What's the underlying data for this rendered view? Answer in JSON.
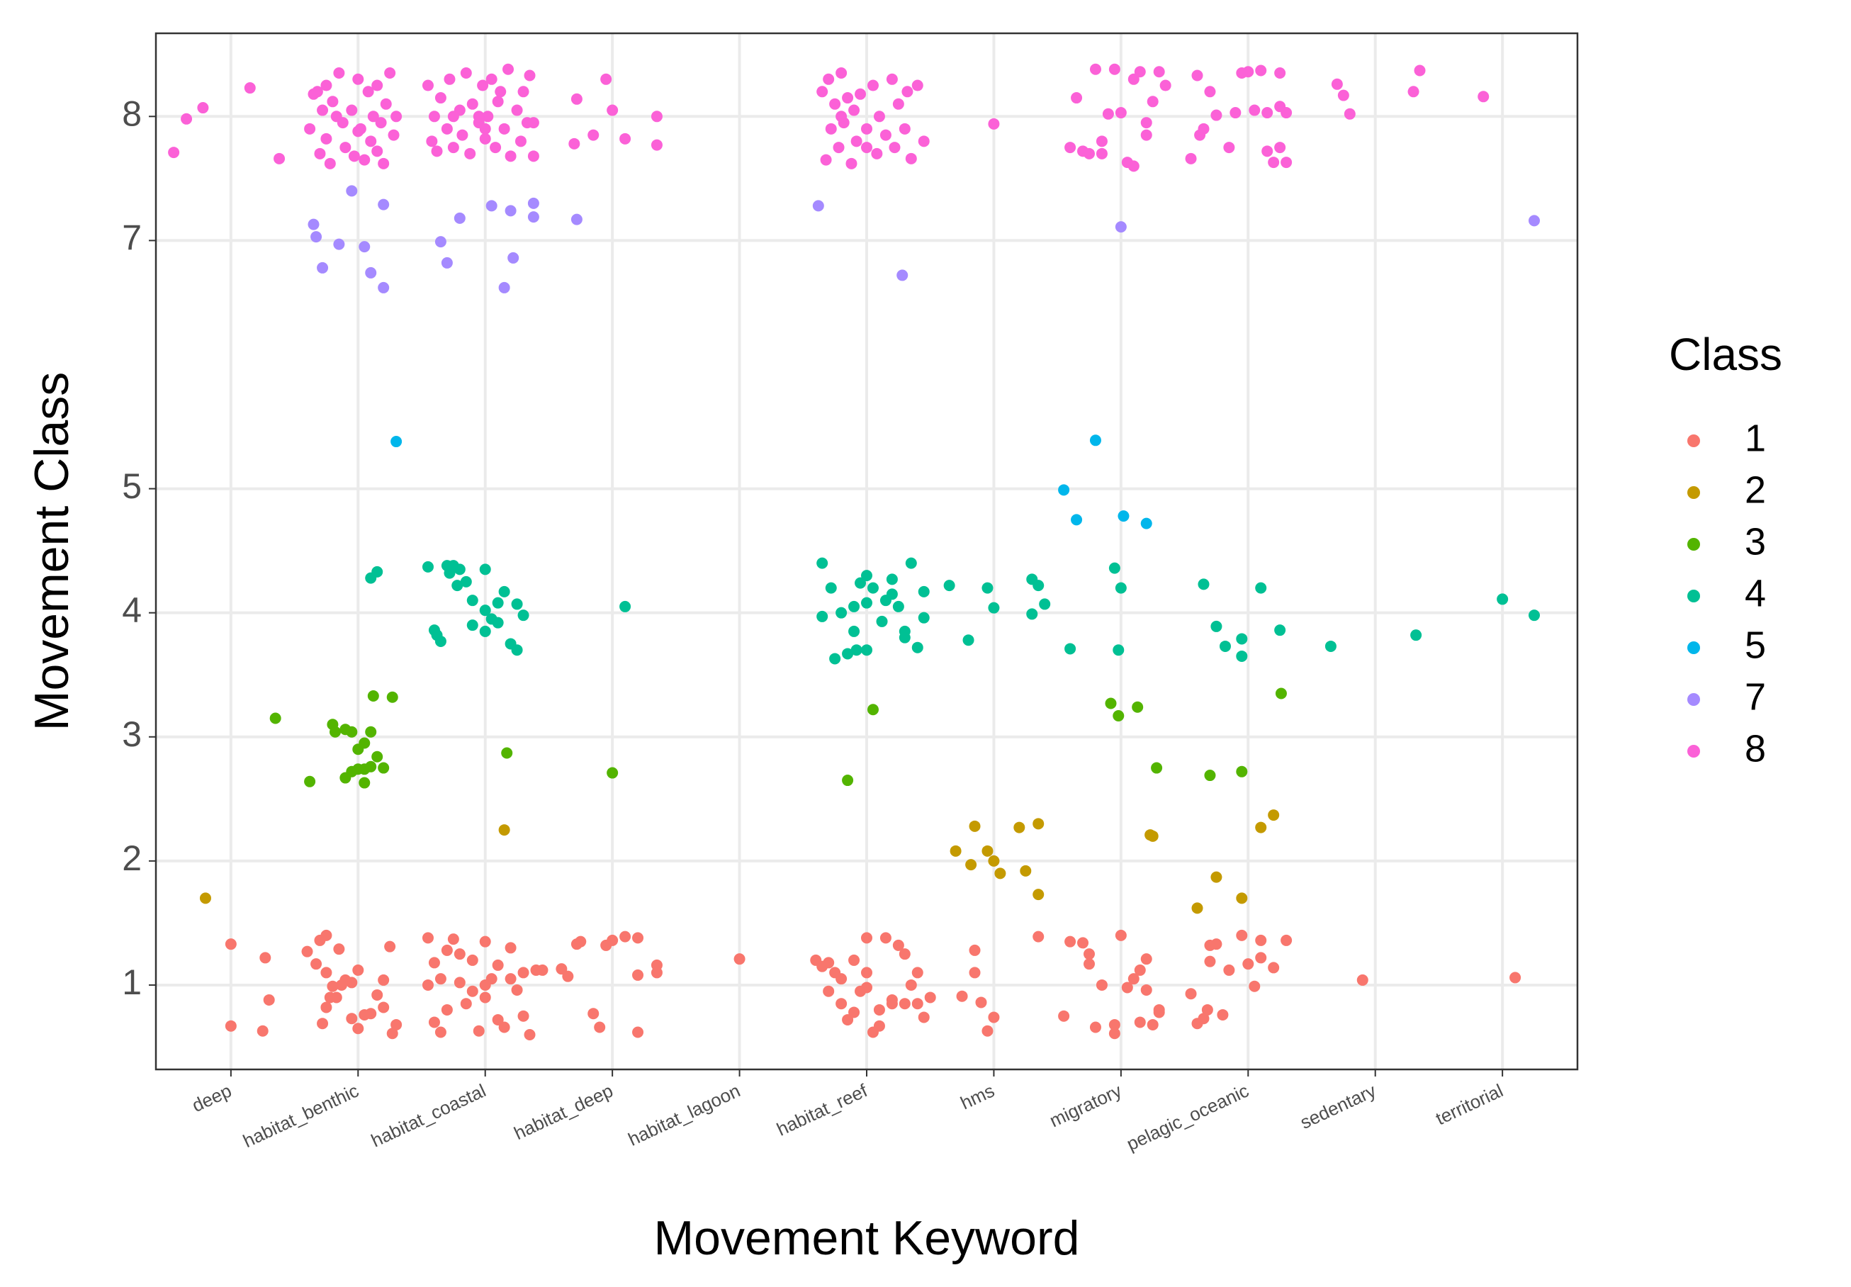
{
  "chart_data": {
    "type": "scatter",
    "x_label": "Movement Keyword",
    "y_label": "Movement Class",
    "legend_title": "Class",
    "xlim": [
      0.41,
      11.59
    ],
    "ylim": [
      0.32,
      8.67
    ],
    "xticks": [
      {
        "value": 1,
        "label": "deep"
      },
      {
        "value": 2,
        "label": "habitat_benthic"
      },
      {
        "value": 3,
        "label": "habitat_coastal"
      },
      {
        "value": 4,
        "label": "habitat_deep"
      },
      {
        "value": 5,
        "label": "habitat_lagoon"
      },
      {
        "value": 6,
        "label": "habitat_reef"
      },
      {
        "value": 7,
        "label": "hms"
      },
      {
        "value": 8,
        "label": "migratory"
      },
      {
        "value": 9,
        "label": "pelagic_oceanic"
      },
      {
        "value": 10,
        "label": "sedentary"
      },
      {
        "value": 11,
        "label": "territorial"
      }
    ],
    "yticks": [
      1,
      2,
      3,
      4,
      5,
      7,
      8
    ],
    "grid": true,
    "legend": "right",
    "series": [
      {
        "name": "1",
        "color": "#F8766D",
        "x": [
          1.0,
          1.0,
          1.25,
          1.27,
          1.3,
          1.6,
          1.67,
          1.7,
          1.75,
          1.8,
          1.78,
          1.75,
          1.72,
          1.95,
          2.0,
          2.05,
          2.1,
          1.9,
          1.87,
          2.15,
          2.2,
          2.25,
          2.27,
          2.3,
          2.0,
          1.85,
          1.95,
          2.2,
          1.75,
          1.83,
          2.55,
          2.55,
          2.6,
          2.65,
          2.7,
          2.75,
          2.8,
          2.85,
          2.9,
          2.95,
          3.0,
          3.0,
          3.05,
          3.1,
          3.15,
          3.2,
          3.25,
          3.3,
          3.35,
          3.4,
          2.6,
          2.7,
          2.8,
          3.1,
          3.3,
          2.9,
          3.0,
          3.2,
          2.65,
          3.45,
          3.6,
          3.65,
          3.72,
          3.75,
          3.85,
          3.9,
          3.95,
          4.0,
          4.1,
          4.2,
          4.2,
          4.2,
          4.35,
          4.35,
          5.0,
          5.6,
          5.65,
          5.7,
          5.75,
          5.8,
          5.85,
          5.9,
          5.95,
          6.0,
          6.05,
          6.1,
          6.15,
          6.2,
          6.25,
          6.3,
          6.35,
          6.4,
          6.45,
          6.5,
          5.7,
          5.8,
          6.0,
          6.2,
          6.3,
          6.4,
          6.1,
          6.0,
          5.9,
          6.75,
          6.85,
          6.85,
          6.9,
          6.95,
          7.0,
          7.35,
          7.55,
          7.6,
          7.7,
          7.75,
          7.75,
          7.8,
          7.85,
          7.95,
          7.95,
          8.0,
          8.05,
          8.1,
          8.15,
          8.15,
          8.2,
          8.2,
          8.25,
          8.3,
          8.3,
          8.55,
          8.6,
          8.65,
          8.7,
          8.7,
          8.75,
          8.8,
          8.85,
          8.95,
          9.0,
          9.05,
          9.1,
          9.1,
          9.2,
          9.3,
          8.68,
          9.9,
          11.1
        ],
        "values": [
          1.33,
          0.67,
          0.63,
          1.22,
          0.88,
          1.27,
          1.17,
          1.36,
          1.4,
          0.99,
          0.9,
          1.1,
          0.69,
          0.73,
          0.65,
          0.76,
          0.77,
          1.04,
          1.0,
          0.92,
          0.82,
          1.31,
          0.61,
          0.68,
          1.12,
          1.29,
          1.02,
          1.04,
          0.82,
          0.9,
          1.38,
          1.0,
          0.7,
          0.62,
          1.28,
          1.37,
          1.02,
          0.85,
          1.2,
          0.63,
          1.35,
          0.9,
          1.05,
          0.72,
          0.66,
          1.3,
          0.96,
          1.1,
          0.6,
          1.12,
          1.18,
          0.8,
          1.25,
          1.16,
          0.75,
          0.95,
          1.0,
          1.05,
          1.05,
          1.12,
          1.13,
          1.07,
          1.33,
          1.35,
          0.77,
          0.66,
          1.32,
          1.36,
          1.39,
          1.38,
          1.08,
          0.62,
          1.16,
          1.1,
          1.21,
          1.2,
          1.15,
          1.18,
          1.1,
          0.85,
          0.72,
          1.2,
          0.95,
          1.38,
          0.62,
          0.67,
          1.38,
          0.88,
          1.32,
          0.85,
          1.0,
          1.1,
          0.74,
          0.9,
          0.95,
          1.05,
          1.1,
          0.85,
          1.25,
          0.85,
          0.8,
          0.98,
          0.78,
          0.91,
          1.28,
          1.1,
          0.86,
          0.63,
          0.74,
          1.39,
          0.75,
          1.35,
          1.34,
          1.25,
          1.17,
          0.66,
          1.0,
          0.68,
          0.61,
          1.4,
          0.98,
          1.05,
          0.7,
          1.12,
          0.96,
          1.21,
          0.68,
          0.8,
          0.78,
          0.93,
          0.69,
          0.73,
          1.32,
          1.19,
          1.33,
          0.76,
          1.12,
          1.4,
          1.17,
          0.99,
          1.36,
          1.22,
          1.14,
          1.36,
          0.8,
          1.04,
          1.06
        ]
      },
      {
        "name": "2",
        "color": "#C49A00",
        "x": [
          0.8,
          3.15,
          6.7,
          6.82,
          6.85,
          6.95,
          7.0,
          7.05,
          7.2,
          7.25,
          7.35,
          7.35,
          8.23,
          8.25,
          8.6,
          8.75,
          8.95,
          9.1,
          9.2
        ],
        "values": [
          1.7,
          2.25,
          2.08,
          1.97,
          2.28,
          2.08,
          2.0,
          1.9,
          2.27,
          1.92,
          2.3,
          1.73,
          2.21,
          2.2,
          1.62,
          1.87,
          1.7,
          2.27,
          2.37
        ]
      },
      {
        "name": "3",
        "color": "#53B400",
        "x": [
          1.35,
          1.62,
          1.8,
          1.82,
          1.9,
          1.95,
          1.9,
          1.95,
          2.0,
          2.0,
          2.05,
          2.05,
          2.1,
          2.1,
          2.15,
          2.12,
          2.2,
          2.27,
          2.05,
          3.17,
          4.0,
          5.85,
          6.05,
          7.92,
          7.98,
          8.13,
          8.28,
          8.7,
          8.95,
          9.26
        ],
        "values": [
          3.15,
          2.64,
          3.1,
          3.04,
          3.06,
          3.04,
          2.67,
          2.72,
          2.74,
          2.9,
          2.74,
          2.63,
          3.04,
          2.76,
          2.84,
          3.33,
          2.75,
          3.32,
          2.95,
          2.87,
          2.71,
          2.65,
          3.22,
          3.27,
          3.17,
          3.24,
          2.75,
          2.69,
          2.72,
          3.35
        ]
      },
      {
        "name": "4",
        "color": "#00C094",
        "x": [
          2.1,
          2.15,
          2.55,
          2.6,
          2.62,
          2.65,
          2.7,
          2.72,
          2.75,
          2.8,
          2.85,
          2.9,
          2.9,
          3.0,
          3.0,
          3.05,
          3.1,
          3.15,
          3.1,
          3.2,
          3.25,
          3.25,
          3.3,
          3.0,
          2.78,
          4.1,
          5.65,
          5.65,
          5.72,
          5.75,
          5.85,
          5.9,
          5.92,
          6.0,
          6.0,
          6.05,
          5.95,
          6.12,
          6.15,
          6.2,
          6.25,
          6.3,
          6.35,
          6.4,
          6.45,
          6.45,
          5.8,
          6.0,
          6.2,
          6.3,
          5.9,
          6.65,
          6.8,
          6.95,
          7.0,
          7.3,
          7.35,
          7.3,
          7.4,
          7.6,
          7.95,
          7.98,
          8.0,
          8.65,
          8.75,
          8.82,
          8.95,
          8.95,
          9.1,
          9.25,
          9.65,
          10.32,
          11.0,
          11.25
        ],
        "values": [
          4.28,
          4.33,
          4.37,
          3.86,
          3.82,
          3.77,
          4.38,
          4.32,
          4.38,
          4.35,
          4.25,
          4.1,
          3.9,
          3.85,
          4.02,
          3.95,
          3.92,
          4.17,
          4.08,
          3.75,
          3.7,
          4.07,
          3.98,
          4.35,
          4.22,
          4.05,
          4.4,
          3.97,
          4.2,
          3.63,
          3.67,
          4.05,
          3.7,
          4.3,
          3.7,
          4.2,
          4.24,
          3.93,
          4.1,
          4.27,
          4.05,
          3.85,
          4.4,
          3.72,
          4.17,
          3.96,
          4.0,
          4.08,
          4.15,
          3.8,
          3.85,
          4.22,
          3.78,
          4.2,
          4.04,
          4.27,
          4.22,
          3.99,
          4.07,
          3.71,
          4.36,
          3.7,
          4.2,
          4.23,
          3.89,
          3.73,
          3.79,
          3.65,
          4.2,
          3.86,
          3.73,
          3.82,
          4.11,
          3.98
        ]
      },
      {
        "name": "5",
        "color": "#00B6EB",
        "x": [
          2.3,
          7.55,
          7.65,
          7.8,
          8.02,
          8.2
        ],
        "values": [
          5.38,
          4.99,
          4.75,
          5.39,
          4.78,
          4.72
        ]
      },
      {
        "name": "7",
        "color": "#A58AFF",
        "x": [
          1.65,
          1.67,
          1.72,
          1.85,
          1.95,
          2.05,
          2.1,
          2.2,
          2.2,
          2.65,
          2.7,
          2.8,
          3.05,
          3.15,
          3.2,
          3.22,
          3.38,
          3.38,
          3.72,
          5.62,
          6.28,
          8.0,
          11.25
        ],
        "values": [
          7.13,
          7.03,
          6.78,
          6.97,
          7.4,
          6.95,
          6.74,
          7.29,
          6.62,
          6.99,
          6.82,
          7.18,
          7.28,
          6.62,
          7.24,
          6.86,
          7.3,
          7.19,
          7.17,
          7.28,
          6.72,
          7.11,
          7.16
        ]
      },
      {
        "name": "8",
        "color": "#FB61D7",
        "x": [
          0.55,
          0.65,
          0.78,
          1.15,
          1.38,
          1.62,
          1.65,
          1.68,
          1.7,
          1.72,
          1.75,
          1.78,
          1.8,
          1.85,
          1.88,
          1.9,
          1.95,
          2.0,
          2.02,
          2.05,
          2.08,
          2.1,
          2.12,
          2.15,
          2.18,
          2.2,
          2.22,
          2.25,
          2.28,
          2.3,
          1.97,
          1.83,
          2.0,
          2.15,
          1.75,
          2.55,
          2.58,
          2.6,
          2.62,
          2.65,
          2.7,
          2.72,
          2.75,
          2.8,
          2.82,
          2.85,
          2.88,
          2.9,
          2.95,
          2.98,
          3.0,
          3.02,
          3.05,
          3.08,
          3.1,
          3.15,
          3.18,
          3.2,
          3.25,
          3.28,
          3.3,
          3.33,
          3.35,
          3.38,
          3.38,
          2.95,
          3.12,
          2.75,
          3.0,
          3.7,
          3.72,
          3.85,
          3.95,
          4.0,
          4.1,
          4.35,
          4.35,
          5.65,
          5.68,
          5.7,
          5.72,
          5.75,
          5.78,
          5.8,
          5.82,
          5.85,
          5.88,
          5.9,
          5.92,
          5.95,
          6.0,
          6.05,
          6.08,
          6.1,
          6.15,
          6.2,
          6.22,
          6.25,
          6.3,
          6.32,
          6.35,
          6.4,
          6.45,
          6.0,
          5.8,
          7.0,
          7.6,
          7.65,
          7.7,
          7.75,
          7.8,
          7.85,
          7.9,
          7.95,
          8.0,
          8.05,
          8.1,
          8.15,
          8.2,
          8.2,
          8.25,
          8.3,
          8.35,
          7.85,
          8.1,
          8.55,
          8.6,
          8.62,
          8.65,
          8.7,
          8.75,
          8.85,
          8.9,
          9.0,
          9.05,
          9.1,
          9.15,
          9.15,
          9.2,
          9.25,
          9.25,
          9.3,
          9.25,
          8.95,
          9.3,
          9.7,
          9.75,
          9.8,
          10.3,
          10.35,
          10.85
        ],
        "values": [
          7.71,
          7.98,
          8.07,
          8.23,
          7.66,
          7.9,
          8.18,
          8.2,
          7.7,
          8.05,
          7.82,
          7.62,
          8.12,
          8.35,
          7.95,
          7.75,
          8.05,
          8.3,
          7.9,
          7.65,
          8.2,
          7.8,
          8.0,
          8.25,
          7.95,
          7.62,
          8.1,
          8.35,
          7.85,
          8.0,
          7.68,
          8.0,
          7.88,
          7.72,
          8.25,
          8.25,
          7.8,
          8.0,
          7.72,
          8.15,
          7.9,
          8.3,
          7.75,
          8.05,
          7.85,
          8.35,
          7.7,
          8.1,
          7.95,
          8.25,
          7.82,
          8.0,
          8.3,
          7.75,
          8.12,
          7.9,
          8.38,
          7.68,
          8.05,
          7.8,
          8.2,
          7.95,
          8.33,
          7.68,
          7.95,
          8.0,
          8.2,
          8.0,
          7.9,
          7.78,
          8.14,
          7.85,
          8.3,
          8.05,
          7.82,
          8.0,
          7.77,
          8.2,
          7.65,
          8.3,
          7.9,
          8.1,
          7.75,
          8.35,
          7.95,
          8.15,
          7.62,
          8.05,
          7.8,
          8.18,
          7.9,
          8.25,
          7.7,
          8.0,
          7.85,
          8.3,
          7.75,
          8.1,
          7.9,
          8.2,
          7.66,
          8.25,
          7.8,
          7.75,
          8.0,
          7.94,
          7.75,
          8.15,
          7.72,
          7.7,
          8.38,
          7.8,
          8.02,
          8.38,
          8.03,
          7.63,
          7.6,
          8.36,
          7.95,
          7.85,
          8.12,
          8.36,
          8.25,
          7.7,
          8.3,
          7.66,
          8.33,
          7.85,
          7.9,
          8.2,
          8.01,
          7.75,
          8.03,
          8.36,
          8.05,
          8.37,
          7.72,
          8.03,
          7.63,
          7.75,
          8.08,
          7.63,
          8.35,
          8.35,
          8.03,
          8.26,
          8.17,
          8.02,
          8.2,
          8.37,
          8.16
        ]
      }
    ]
  }
}
